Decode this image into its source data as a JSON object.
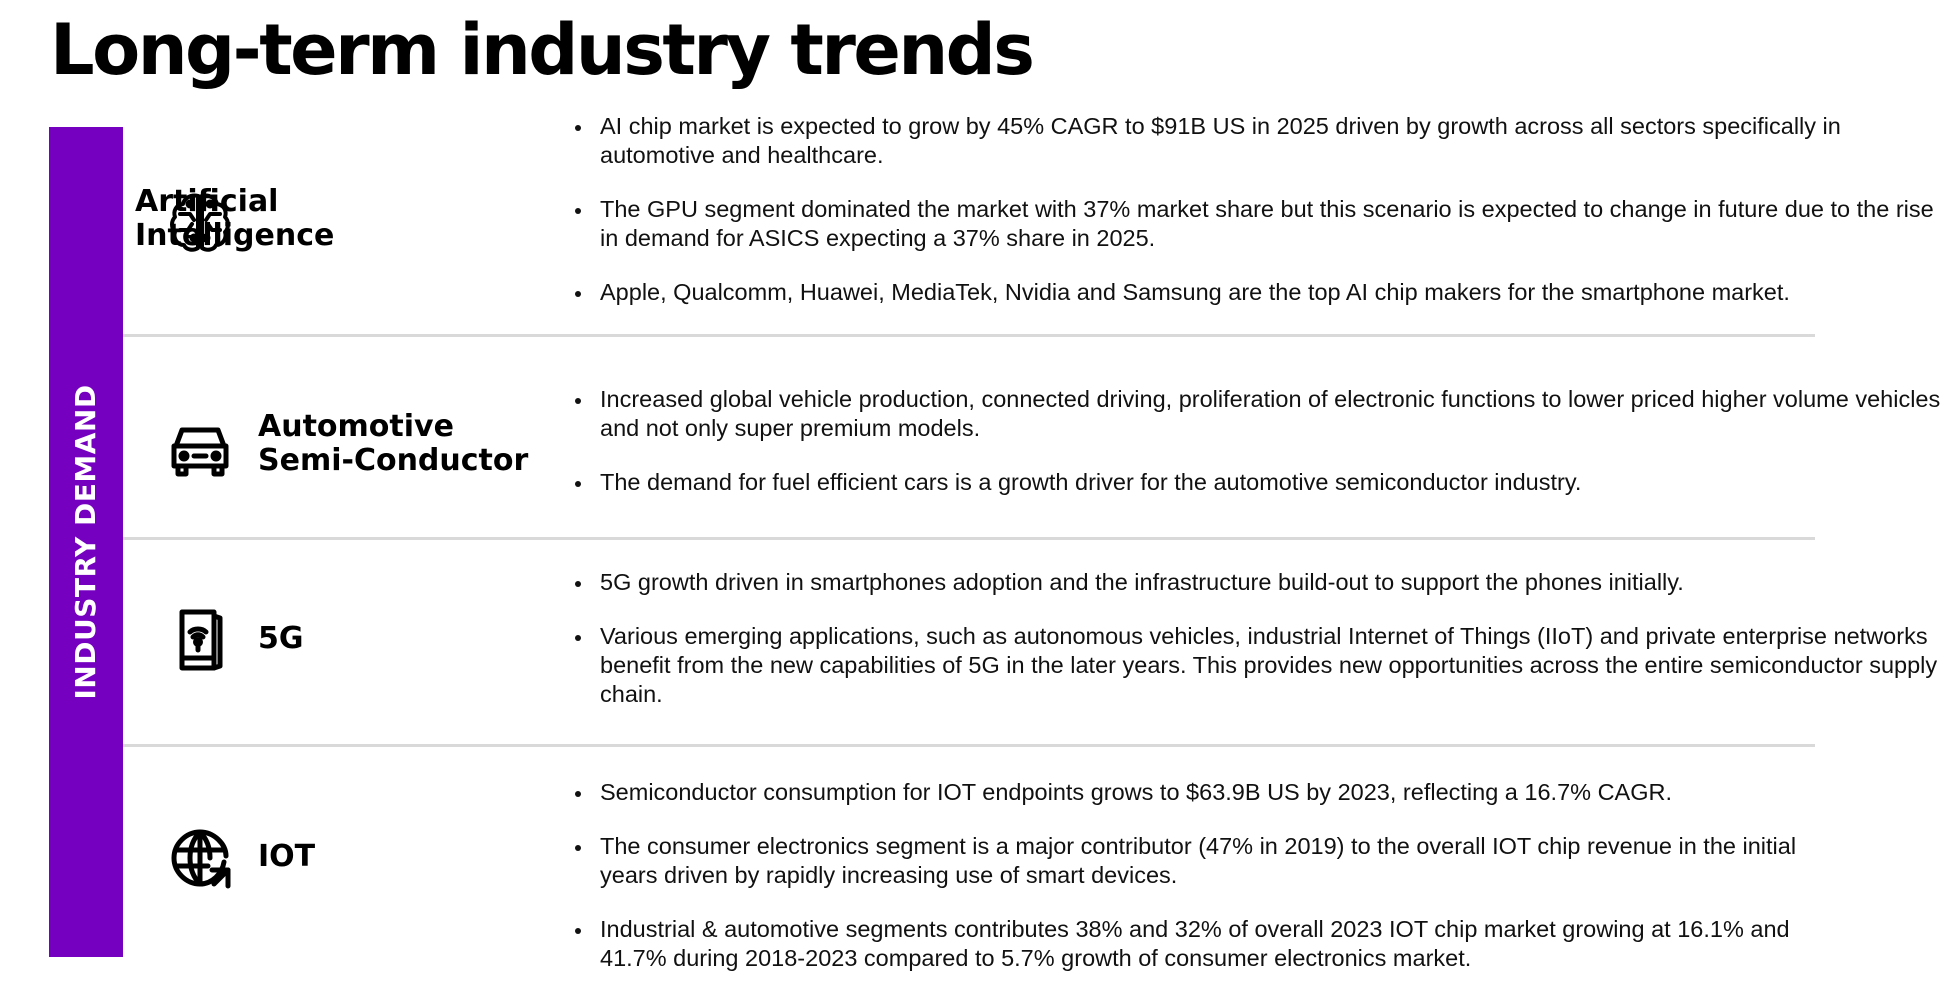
{
  "page": {
    "title": "Long-term industry trends",
    "side_label": "INDUSTRY DEMAND",
    "accent_color": "#7500c0"
  },
  "sections": [
    {
      "icon": "ai-brain-icon",
      "title_lines": [
        "Artificial",
        "Intelligence"
      ],
      "bullets": [
        "AI chip market is expected to grow by 45% CAGR to $91B US in 2025 driven by growth across all sectors specifically in automotive and healthcare.",
        "The GPU segment dominated the market with 37% market share but this scenario is expected to change in future due to the rise in demand for ASICS expecting a 37% share in 2025.",
        "Apple, Qualcomm, Huawei, MediaTek, Nvidia and Samsung are the top AI chip makers for the smartphone market."
      ]
    },
    {
      "icon": "car-icon",
      "title_lines": [
        "Automotive",
        "Semi-Conductor"
      ],
      "bullets": [
        "Increased global vehicle production, connected driving, proliferation of electronic functions to lower priced higher volume vehicles and not only super premium models.",
        "The demand for fuel efficient cars is a growth driver for the automotive semiconductor industry."
      ]
    },
    {
      "icon": "smartphone-wifi-icon",
      "title_lines": [
        "5G"
      ],
      "bullets": [
        "5G growth driven in smartphones adoption and the infrastructure build-out to support the phones initially.",
        "Various emerging applications, such as autonomous vehicles, industrial Internet of Things (IIoT) and private enterprise networks benefit from the new capabilities of 5G in the later years. This provides new opportunities across the entire semiconductor supply chain."
      ]
    },
    {
      "icon": "globe-arrow-icon",
      "title_lines": [
        "IOT"
      ],
      "bullets": [
        "Semiconductor consumption for IOT endpoints grows to $63.9B US by 2023, reflecting a 16.7% CAGR.",
        "The consumer electronics segment is a major contributor (47% in 2019) to the overall IOT chip revenue in the initial years driven by rapidly increasing use of smart devices.",
        "Industrial & automotive segments contributes 38% and 32% of overall 2023 IOT chip market growing at 16.1% and 41.7% during 2018-2023 compared to 5.7% growth of consumer electronics market."
      ]
    }
  ]
}
